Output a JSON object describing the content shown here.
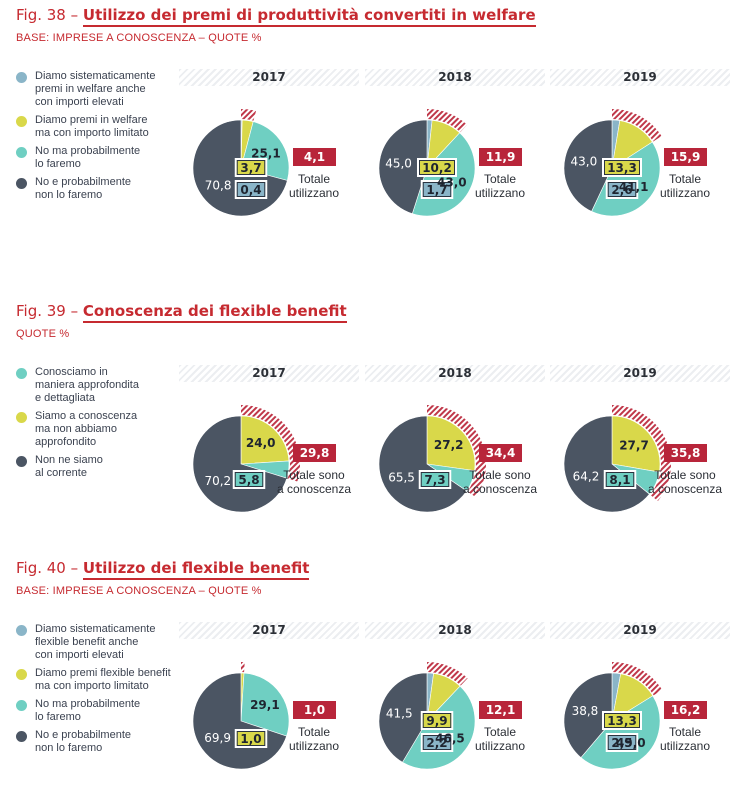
{
  "colors": {
    "accent_red": "#c62a30",
    "total_box": "#b8253a",
    "hatch": "#c0384a",
    "light_blue": "#8ab5c8",
    "yellow_green": "#d9d84a",
    "teal": "#6fcfc2",
    "dark_slate": "#4b5563"
  },
  "chart_data": [
    {
      "type": "pie",
      "fig_num": "Fig. 38 –",
      "title": "Utilizzo dei premi di produttività convertiti in welfare",
      "base": "BASE: IMPRESE A CONOSCENZA – QUOTE %",
      "total_caption": "Totale\nutilizzano",
      "legend": [
        {
          "label": "Diamo sistematicamente\npremi in welfare anche\ncon importi elevati",
          "color": "#8ab5c8"
        },
        {
          "label": "Diamo premi in welfare\nma con importo limitato",
          "color": "#d9d84a"
        },
        {
          "label": "No ma probabilmente\nlo faremo",
          "color": "#6fcfc2"
        },
        {
          "label": "No e probabilmente\nnon lo faremo",
          "color": "#4b5563"
        }
      ],
      "panels": [
        {
          "year": "2017",
          "total": "4,1",
          "slices": [
            {
              "value": 0.4,
              "label": "0,4",
              "color": "#8ab5c8",
              "boxed": true
            },
            {
              "value": 3.7,
              "label": "3,7",
              "color": "#d9d84a",
              "boxed": true
            },
            {
              "value": 25.1,
              "label": "25,1",
              "color": "#6fcfc2",
              "boxed": false
            },
            {
              "value": 70.8,
              "label": "70,8",
              "color": "#4b5563",
              "boxed": false
            }
          ]
        },
        {
          "year": "2018",
          "total": "11,9",
          "slices": [
            {
              "value": 1.7,
              "label": "1,7",
              "color": "#8ab5c8",
              "boxed": true
            },
            {
              "value": 10.2,
              "label": "10,2",
              "color": "#d9d84a",
              "boxed": true
            },
            {
              "value": 43.0,
              "label": "43,0",
              "color": "#6fcfc2",
              "boxed": false
            },
            {
              "value": 45.0,
              "label": "45,0",
              "color": "#4b5563",
              "boxed": false
            }
          ]
        },
        {
          "year": "2019",
          "total": "15,9",
          "slices": [
            {
              "value": 2.6,
              "label": "2,6",
              "color": "#8ab5c8",
              "boxed": true
            },
            {
              "value": 13.3,
              "label": "13,3",
              "color": "#d9d84a",
              "boxed": true
            },
            {
              "value": 41.1,
              "label": "41,1",
              "color": "#6fcfc2",
              "boxed": false
            },
            {
              "value": 43.0,
              "label": "43,0",
              "color": "#4b5563",
              "boxed": false
            }
          ]
        }
      ]
    },
    {
      "type": "pie",
      "fig_num": "Fig. 39 –",
      "title": "Conoscenza dei flexible benefit",
      "base": "QUOTE %",
      "total_caption": "Totale sono\na conoscenza",
      "legend": [
        {
          "label": "Conosciamo in\nmaniera approfondita\ne dettagliata",
          "color": "#6fcfc2"
        },
        {
          "label": "Siamo a conoscenza\nma non abbiamo\napprofondito",
          "color": "#d9d84a"
        },
        {
          "label": "Non ne siamo\nal corrente",
          "color": "#4b5563"
        }
      ],
      "panels": [
        {
          "year": "2017",
          "total": "29,8",
          "slices": [
            {
              "value": 24.0,
              "label": "24,0",
              "color": "#d9d84a",
              "boxed": false
            },
            {
              "value": 5.8,
              "label": "5,8",
              "color": "#6fcfc2",
              "boxed": true
            },
            {
              "value": 70.2,
              "label": "70,2",
              "color": "#4b5563",
              "boxed": false
            }
          ]
        },
        {
          "year": "2018",
          "total": "34,4",
          "slices": [
            {
              "value": 27.2,
              "label": "27,2",
              "color": "#d9d84a",
              "boxed": false
            },
            {
              "value": 7.3,
              "label": "7,3",
              "color": "#6fcfc2",
              "boxed": true
            },
            {
              "value": 65.5,
              "label": "65,5",
              "color": "#4b5563",
              "boxed": false
            }
          ]
        },
        {
          "year": "2019",
          "total": "35,8",
          "slices": [
            {
              "value": 27.7,
              "label": "27,7",
              "color": "#d9d84a",
              "boxed": false
            },
            {
              "value": 8.1,
              "label": "8,1",
              "color": "#6fcfc2",
              "boxed": true
            },
            {
              "value": 64.2,
              "label": "64,2",
              "color": "#4b5563",
              "boxed": false
            }
          ]
        }
      ]
    },
    {
      "type": "pie",
      "fig_num": "Fig. 40 –",
      "title": "Utilizzo dei flexible benefit",
      "base": "BASE: IMPRESE A CONOSCENZA – QUOTE %",
      "total_caption": "Totale\nutilizzano",
      "legend": [
        {
          "label": "Diamo sistematicamente\nflexible benefit anche\ncon importi elevati",
          "color": "#8ab5c8"
        },
        {
          "label": "Diamo premi flexible benefit\nma con importo limitato",
          "color": "#d9d84a"
        },
        {
          "label": "No ma probabilmente\nlo faremo",
          "color": "#6fcfc2"
        },
        {
          "label": "No e probabilmente\nnon lo faremo",
          "color": "#4b5563"
        }
      ],
      "panels": [
        {
          "year": "2017",
          "total": "1,0",
          "slices": [
            {
              "value": 0.0,
              "label": "",
              "color": "#8ab5c8",
              "boxed": false
            },
            {
              "value": 1.0,
              "label": "1,0",
              "color": "#d9d84a",
              "boxed": true
            },
            {
              "value": 29.1,
              "label": "29,1",
              "color": "#6fcfc2",
              "boxed": false
            },
            {
              "value": 69.9,
              "label": "69,9",
              "color": "#4b5563",
              "boxed": false
            }
          ]
        },
        {
          "year": "2018",
          "total": "12,1",
          "slices": [
            {
              "value": 2.2,
              "label": "2,2",
              "color": "#8ab5c8",
              "boxed": true
            },
            {
              "value": 9.9,
              "label": "9,9",
              "color": "#d9d84a",
              "boxed": true
            },
            {
              "value": 46.5,
              "label": "46,5",
              "color": "#6fcfc2",
              "boxed": false
            },
            {
              "value": 41.5,
              "label": "41,5",
              "color": "#4b5563",
              "boxed": false
            }
          ]
        },
        {
          "year": "2019",
          "total": "16,2",
          "slices": [
            {
              "value": 2.9,
              "label": "2,9",
              "color": "#8ab5c8",
              "boxed": true
            },
            {
              "value": 13.3,
              "label": "13,3",
              "color": "#d9d84a",
              "boxed": true
            },
            {
              "value": 45.0,
              "label": "45,0",
              "color": "#6fcfc2",
              "boxed": false
            },
            {
              "value": 38.8,
              "label": "38,8",
              "color": "#4b5563",
              "boxed": false
            }
          ]
        }
      ]
    }
  ]
}
